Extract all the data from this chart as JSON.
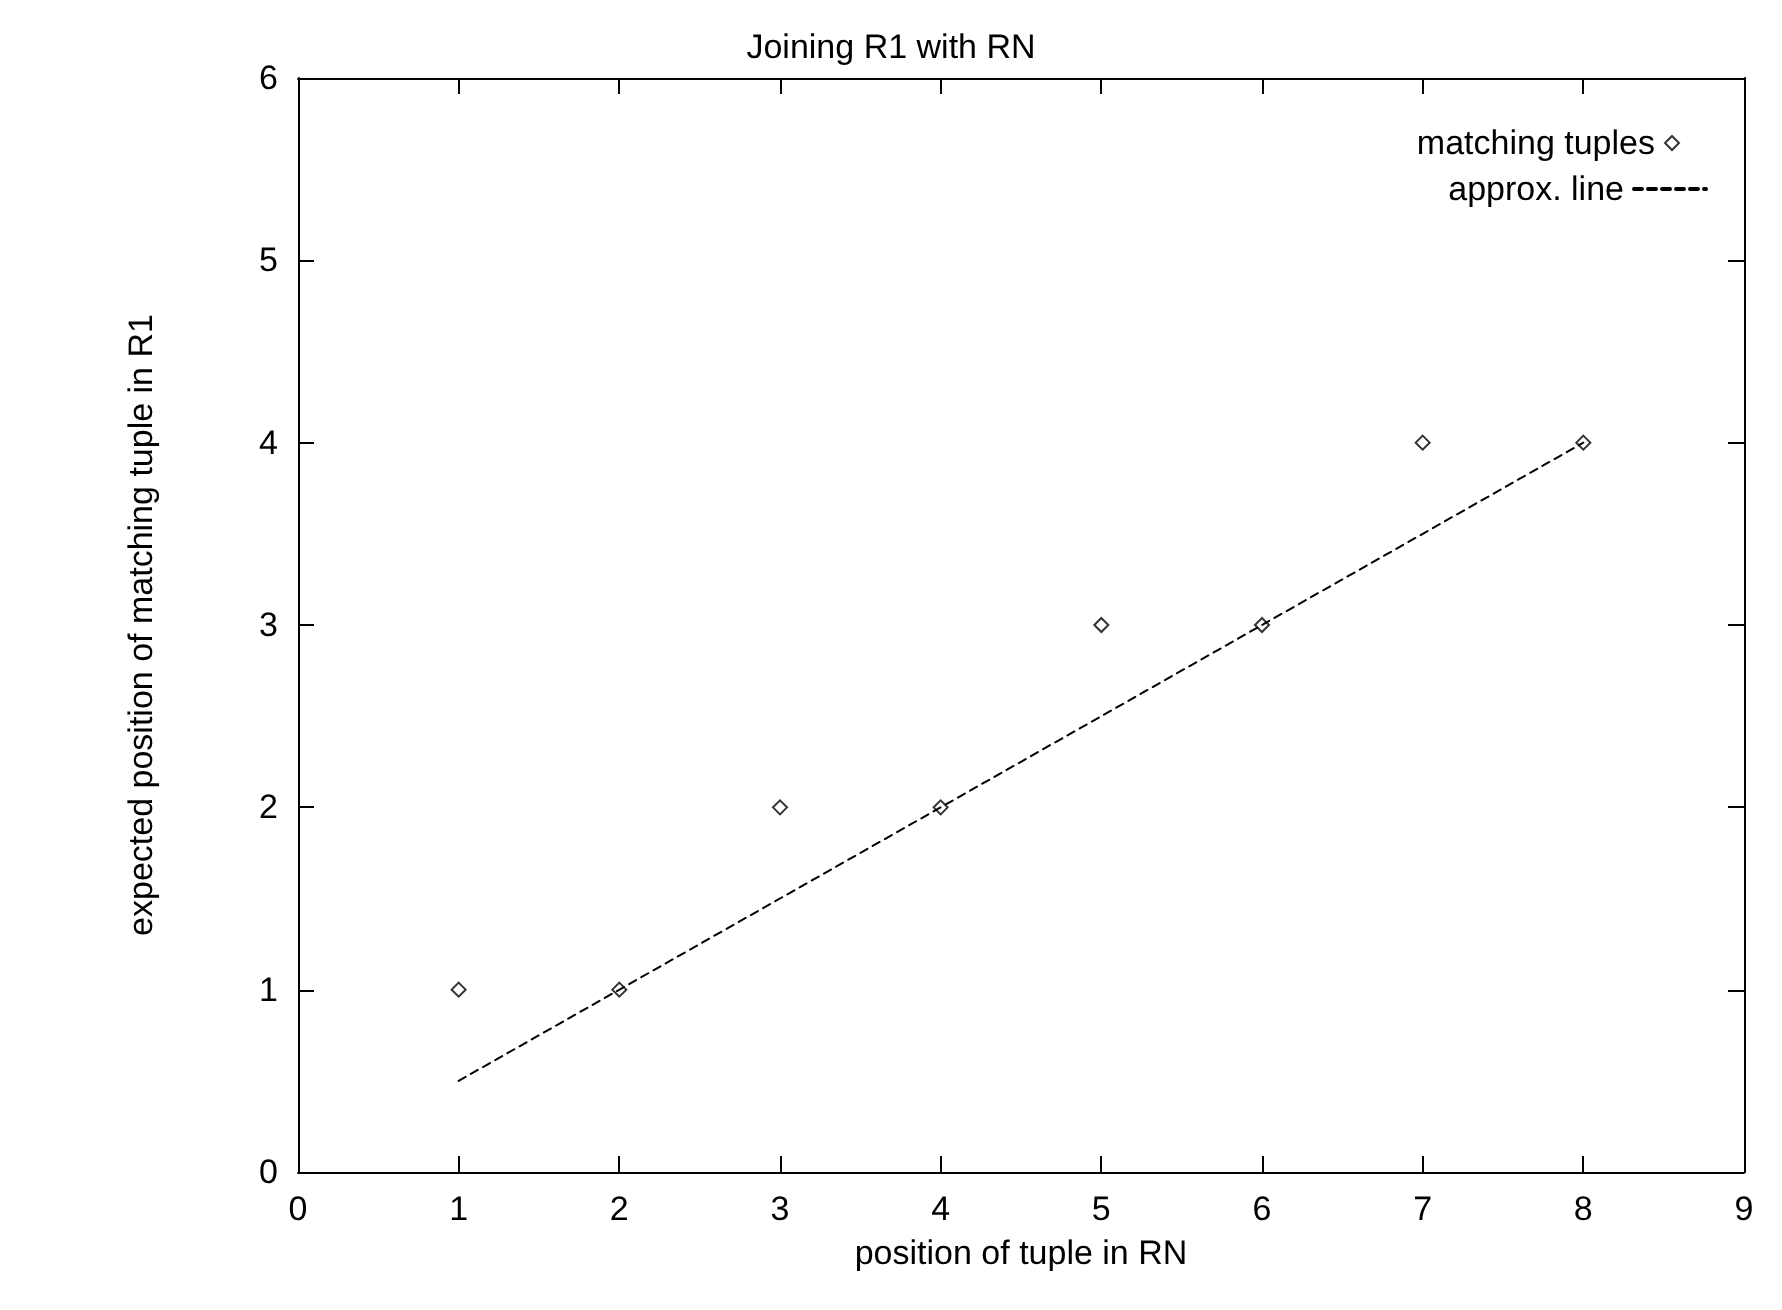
{
  "chart_data": {
    "type": "scatter",
    "title": "Joining R1 with RN",
    "xlabel": "position of tuple in RN",
    "ylabel": "expected position of matching tuple in R1",
    "x": [
      1,
      2,
      3,
      4,
      5,
      6,
      7,
      8
    ],
    "series": [
      {
        "name": "matching tuples",
        "color": "#000000",
        "values": [
          1,
          1,
          2,
          2,
          3,
          3,
          4,
          4
        ],
        "marker": "diamond"
      },
      {
        "name": "approx. line",
        "type": "line",
        "color": "#000000",
        "x": [
          1,
          8
        ],
        "values": [
          0.5,
          4
        ],
        "line_style": "dashed",
        "marker": "none"
      }
    ],
    "xlim": [
      0,
      9
    ],
    "xticks": [
      0,
      1,
      2,
      3,
      4,
      5,
      6,
      7,
      8,
      9
    ],
    "ylim": [
      0,
      6
    ],
    "yticks": [
      0,
      1,
      2,
      3,
      4,
      5,
      6
    ],
    "grid": false,
    "legend": "top right"
  }
}
